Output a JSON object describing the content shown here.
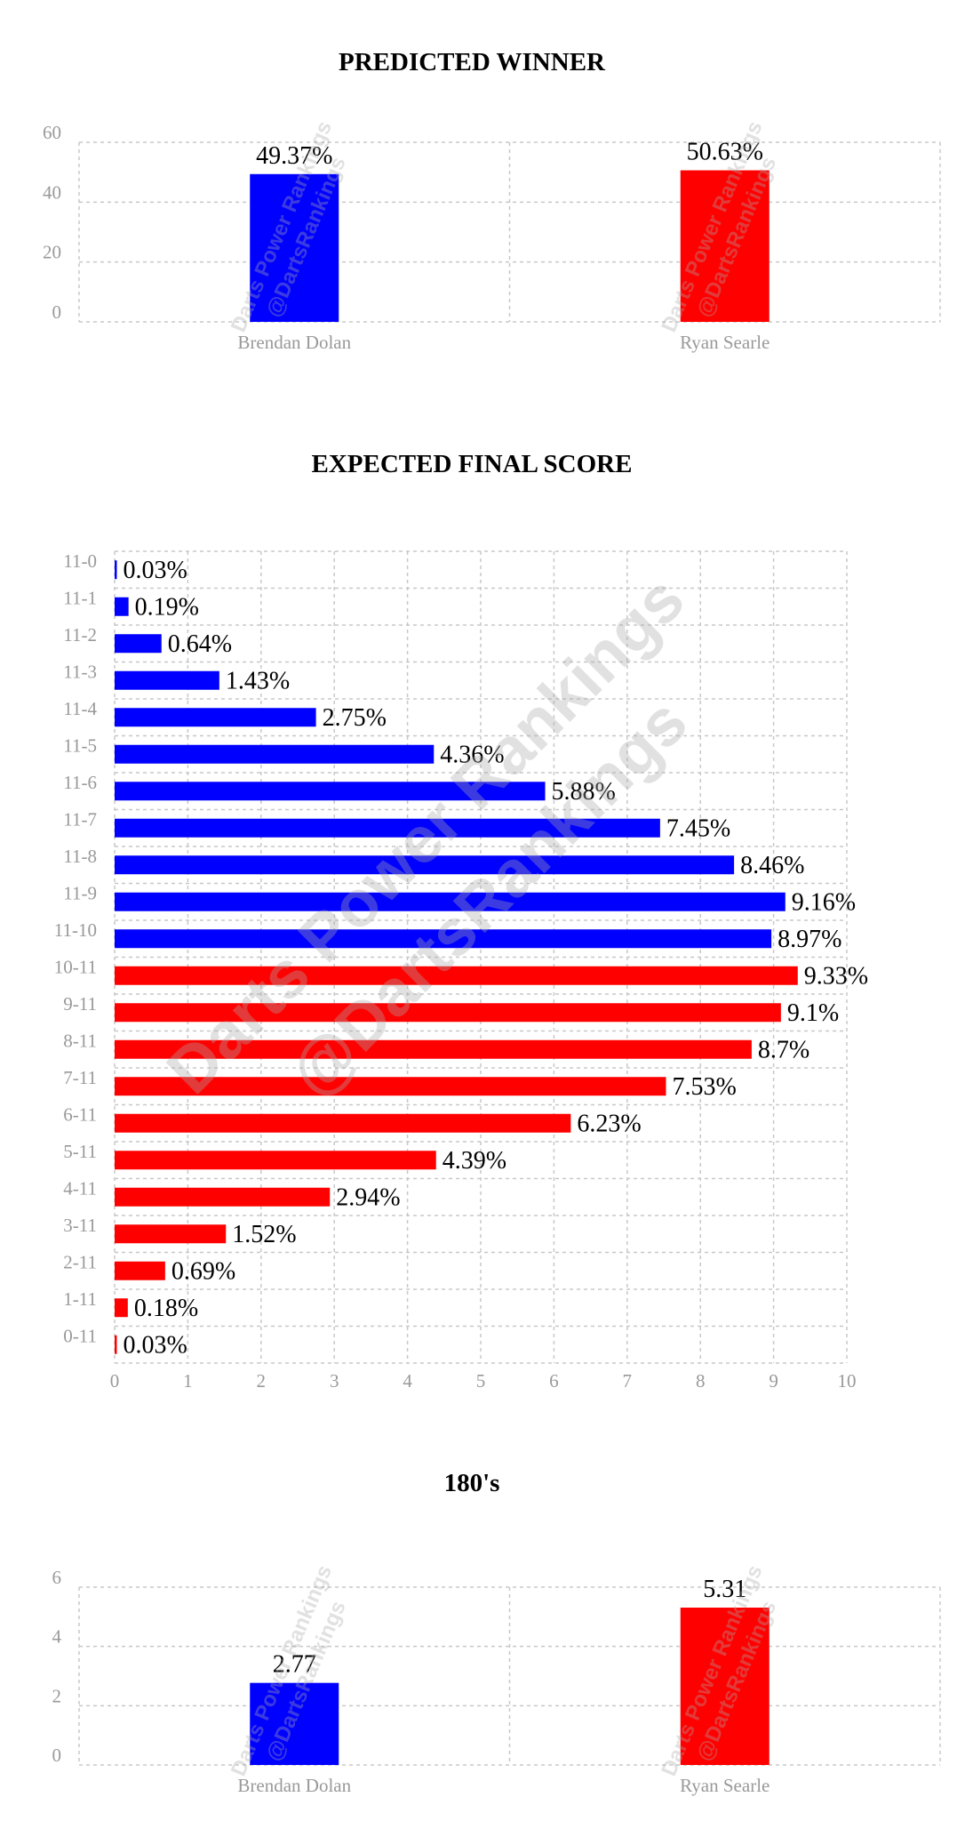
{
  "chart_data": [
    {
      "type": "bar",
      "title": "PREDICTED WINNER",
      "categories": [
        "Brendan Dolan",
        "Ryan Searle"
      ],
      "values": [
        49.37,
        50.63
      ],
      "data_labels": [
        "49.37%",
        "50.63%"
      ],
      "colors": [
        "#0000ff",
        "#ff0000"
      ],
      "ylim": [
        0,
        60
      ],
      "yticks": [
        0,
        20,
        40,
        60
      ],
      "grid": true,
      "watermark": [
        "Darts Power Rankings",
        "@DartsRankings"
      ]
    },
    {
      "type": "bar",
      "orientation": "horizontal",
      "title": "EXPECTED FINAL SCORE",
      "categories": [
        "11-0",
        "11-1",
        "11-2",
        "11-3",
        "11-4",
        "11-5",
        "11-6",
        "11-7",
        "11-8",
        "11-9",
        "11-10",
        "10-11",
        "9-11",
        "8-11",
        "7-11",
        "6-11",
        "5-11",
        "4-11",
        "3-11",
        "2-11",
        "1-11",
        "0-11"
      ],
      "values": [
        0.03,
        0.19,
        0.64,
        1.43,
        2.75,
        4.36,
        5.88,
        7.45,
        8.46,
        9.16,
        8.97,
        9.33,
        9.1,
        8.7,
        7.53,
        6.23,
        4.39,
        2.94,
        1.52,
        0.69,
        0.18,
        0.03
      ],
      "data_labels": [
        "0.03%",
        "0.19%",
        "0.64%",
        "1.43%",
        "2.75%",
        "4.36%",
        "5.88%",
        "7.45%",
        "8.46%",
        "9.16%",
        "8.97%",
        "9.33%",
        "9.1%",
        "8.7%",
        "7.53%",
        "6.23%",
        "4.39%",
        "2.94%",
        "1.52%",
        "0.69%",
        "0.18%",
        "0.03%"
      ],
      "colors": [
        "#0000ff",
        "#0000ff",
        "#0000ff",
        "#0000ff",
        "#0000ff",
        "#0000ff",
        "#0000ff",
        "#0000ff",
        "#0000ff",
        "#0000ff",
        "#0000ff",
        "#ff0000",
        "#ff0000",
        "#ff0000",
        "#ff0000",
        "#ff0000",
        "#ff0000",
        "#ff0000",
        "#ff0000",
        "#ff0000",
        "#ff0000",
        "#ff0000"
      ],
      "xlim": [
        0,
        10
      ],
      "xticks": [
        0,
        1,
        2,
        3,
        4,
        5,
        6,
        7,
        8,
        9,
        10
      ],
      "grid": true,
      "watermark": [
        "Darts Power Rankings",
        "@DartsRankings"
      ]
    },
    {
      "type": "bar",
      "title": "180's",
      "categories": [
        "Brendan Dolan",
        "Ryan Searle"
      ],
      "values": [
        2.77,
        5.31
      ],
      "data_labels": [
        "2.77",
        "5.31"
      ],
      "colors": [
        "#0000ff",
        "#ff0000"
      ],
      "ylim": [
        0,
        6
      ],
      "yticks": [
        0,
        2,
        4,
        6
      ],
      "grid": true,
      "watermark": [
        "Darts Power Rankings",
        "@DartsRankings"
      ]
    }
  ]
}
